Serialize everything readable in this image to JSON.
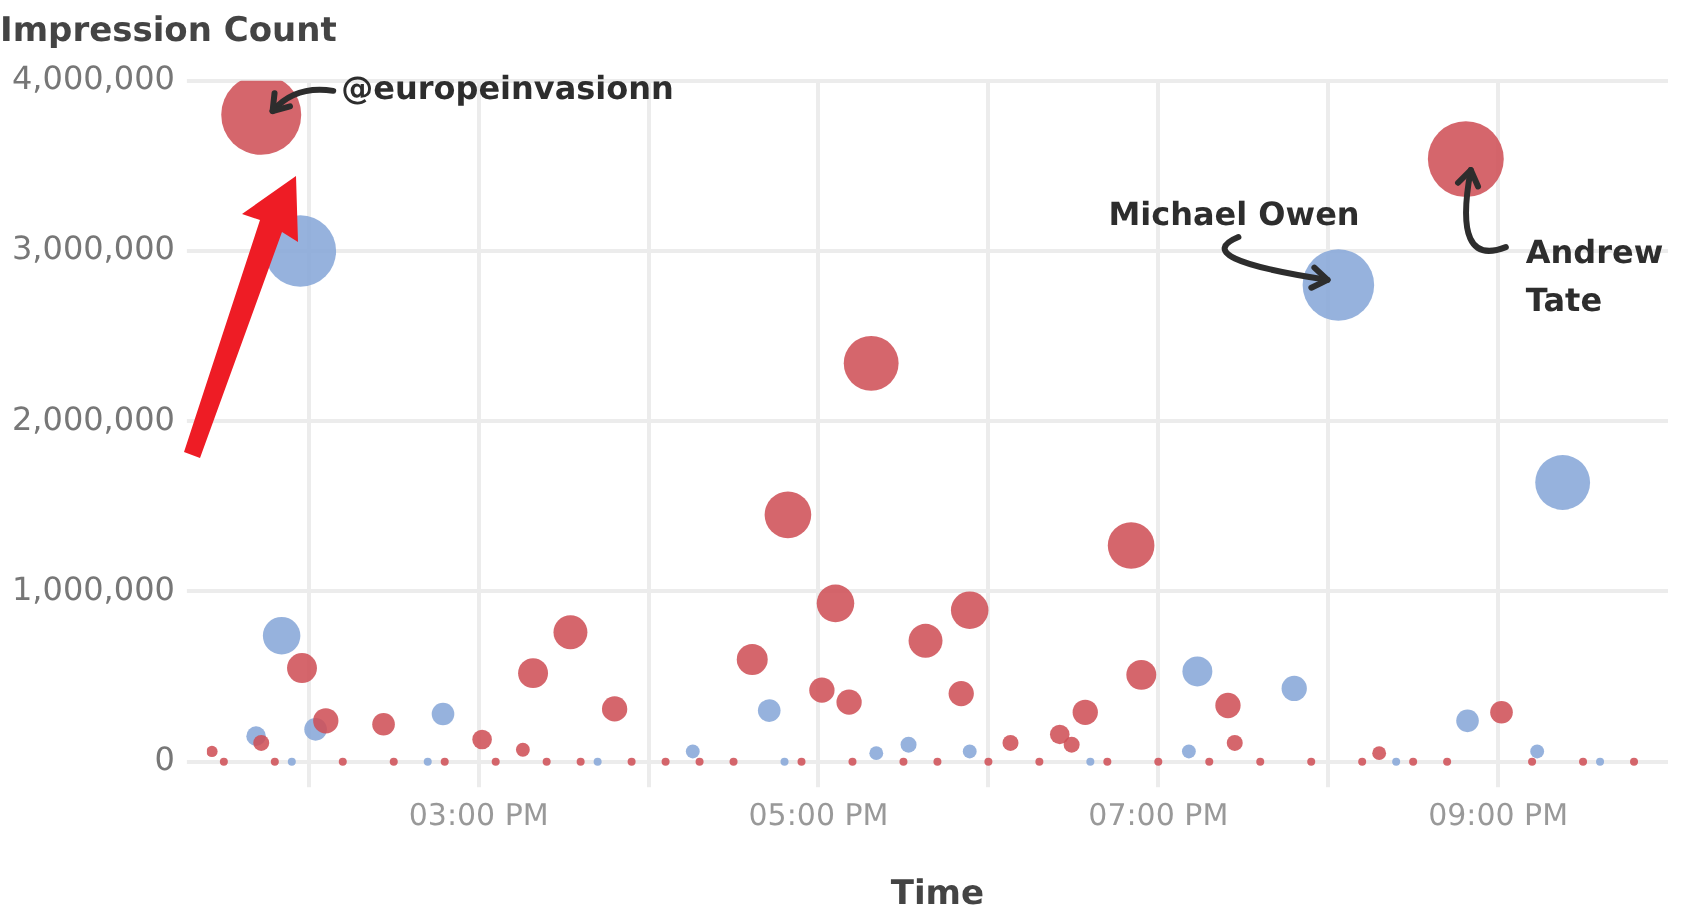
{
  "chart_data": {
    "type": "bubble",
    "ylabel": "Impression Count",
    "xlabel": "Time",
    "xlim": [
      13.4,
      22
    ],
    "xticks": [
      {
        "value": 14,
        "label": null
      },
      {
        "value": 15,
        "label": "03:00 PM"
      },
      {
        "value": 16,
        "label": null
      },
      {
        "value": 17,
        "label": "05:00 PM"
      },
      {
        "value": 18,
        "label": null
      },
      {
        "value": 19,
        "label": "07:00 PM"
      },
      {
        "value": 20,
        "label": null
      },
      {
        "value": 21,
        "label": "09:00 PM"
      }
    ],
    "ylim": [
      -150000,
      4000000
    ],
    "yticks": [
      {
        "value": 0,
        "label": "0"
      },
      {
        "value": 1000000,
        "label": "1,000,000"
      },
      {
        "value": 2000000,
        "label": "2,000,000"
      },
      {
        "value": 3000000,
        "label": "3,000,000"
      },
      {
        "value": 4000000,
        "label": "4,000,000"
      }
    ],
    "grid": true,
    "legend": false,
    "series": [
      {
        "color": "#cf4f55",
        "x": [
          13.43,
          13.72,
          13.72,
          13.96,
          14.1,
          14.44,
          15.02,
          15.26,
          15.32,
          15.54,
          15.8,
          16.61,
          16.82,
          17.02,
          17.1,
          17.18,
          17.31,
          17.63,
          17.84,
          17.89,
          18.13,
          18.42,
          18.49,
          18.57,
          18.84,
          18.9,
          19.41,
          19.45,
          20.3,
          20.81,
          21.02,
          13.5,
          13.8,
          14.2,
          14.5,
          14.8,
          15.1,
          15.4,
          15.6,
          15.9,
          16.1,
          16.3,
          16.5,
          16.9,
          17.2,
          17.5,
          17.7,
          18.0,
          18.3,
          18.7,
          19.0,
          19.3,
          19.6,
          19.9,
          20.2,
          20.5,
          20.7,
          21.2,
          21.5,
          21.8
        ],
        "values": [
          60000,
          3800000,
          110000,
          550000,
          240000,
          220000,
          130000,
          70000,
          520000,
          760000,
          310000,
          600000,
          1450000,
          420000,
          930000,
          350000,
          2340000,
          710000,
          400000,
          890000,
          110000,
          160000,
          100000,
          290000,
          1270000,
          510000,
          330000,
          110000,
          50000,
          3540000,
          290000,
          0,
          0,
          0,
          0,
          0,
          0,
          0,
          0,
          0,
          0,
          0,
          0,
          0,
          0,
          0,
          0,
          0,
          0,
          0,
          0,
          0,
          0,
          0,
          0,
          0,
          0,
          0,
          0,
          0
        ],
        "sizes": [
          0.02,
          1,
          0.04,
          0.14,
          0.1,
          0.08,
          0.06,
          0.03,
          0.14,
          0.18,
          0.1,
          0.15,
          0.34,
          0.1,
          0.22,
          0.1,
          0.47,
          0.18,
          0.1,
          0.22,
          0.04,
          0.06,
          0.04,
          0.1,
          0.34,
          0.14,
          0.1,
          0.04,
          0.03,
          0.9,
          0.08,
          0.01,
          0.01,
          0.01,
          0.01,
          0.01,
          0.01,
          0.01,
          0.01,
          0.01,
          0.01,
          0.01,
          0.01,
          0.01,
          0.01,
          0.01,
          0.01,
          0.01,
          0.01,
          0.01,
          0.01,
          0.01,
          0.01,
          0.01,
          0.01,
          0.01,
          0.01,
          0.01,
          0.01,
          0.01
        ]
      },
      {
        "color": "#86a6d8",
        "x": [
          13.69,
          13.84,
          13.95,
          14.04,
          14.79,
          16.26,
          16.71,
          17.34,
          17.53,
          17.89,
          19.18,
          19.23,
          19.8,
          20.06,
          20.82,
          21.23,
          21.38,
          13.9,
          14.7,
          15.7,
          16.8,
          18.6,
          20.4,
          21.6
        ],
        "values": [
          150000,
          740000,
          3000000,
          190000,
          280000,
          60000,
          300000,
          50000,
          100000,
          60000,
          60000,
          530000,
          430000,
          2800000,
          240000,
          60000,
          1640000,
          0,
          0,
          0,
          0,
          0,
          0,
          0
        ],
        "sizes": [
          0.06,
          0.22,
          0.8,
          0.08,
          0.08,
          0.03,
          0.08,
          0.03,
          0.04,
          0.03,
          0.03,
          0.14,
          0.1,
          0.8,
          0.08,
          0.03,
          0.47,
          0.01,
          0.01,
          0.01,
          0.01,
          0.01,
          0.01,
          0.01
        ]
      }
    ],
    "annotations": [
      {
        "text": "@europeinvasionn",
        "x": 13.72,
        "y": 3800000
      },
      {
        "text": "Michael Owen",
        "x": 20.06,
        "y": 2800000
      },
      {
        "text": "Andrew Tate",
        "x": 20.81,
        "y": 3540000
      }
    ]
  }
}
